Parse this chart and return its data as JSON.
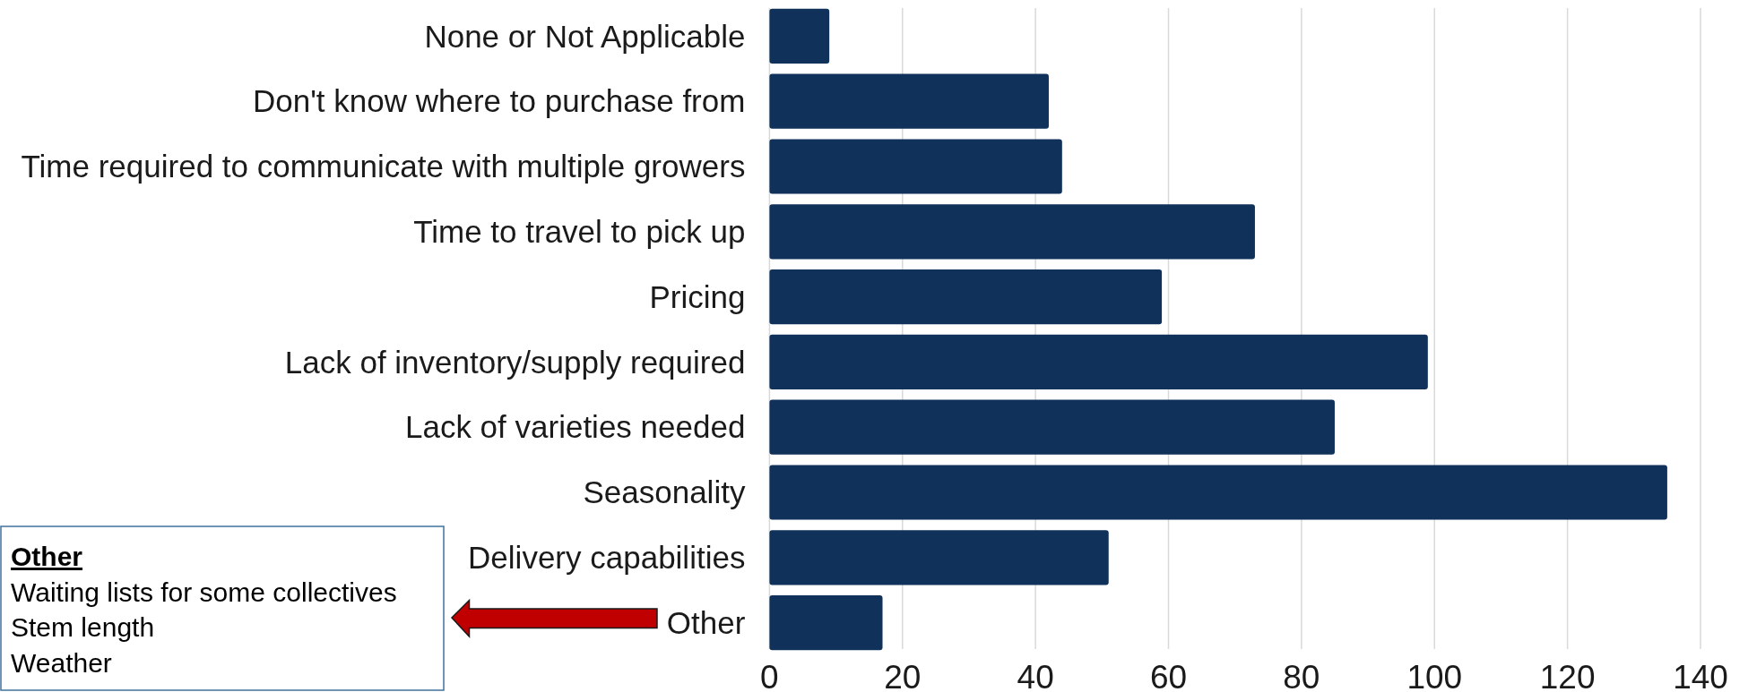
{
  "chart_data": {
    "type": "bar",
    "orientation": "horizontal",
    "categories": [
      "None or Not Applicable",
      "Don't know where to purchase from",
      "Time required to communicate with multiple growers",
      "Time to travel to pick up",
      "Pricing",
      "Lack of inventory/supply required",
      "Lack of varieties needed",
      "Seasonality",
      "Delivery capabilities",
      "Other"
    ],
    "values": [
      9,
      42,
      44,
      73,
      59,
      99,
      85,
      135,
      51,
      17
    ],
    "color": "#10325a",
    "xlim": [
      0,
      140
    ],
    "xticks": [
      0,
      20,
      40,
      60,
      80,
      100,
      120,
      140
    ],
    "grid": "x",
    "annotations": [
      "Other",
      "Waiting lists for some collectives",
      "Stem length",
      "Weather"
    ]
  }
}
